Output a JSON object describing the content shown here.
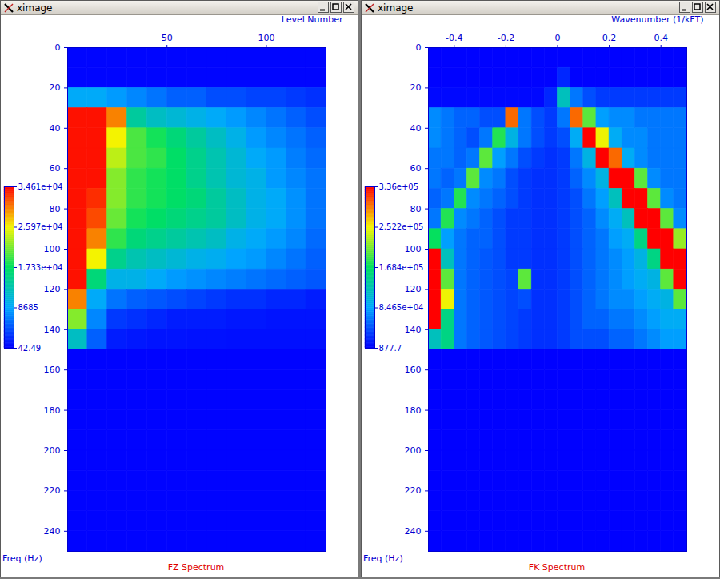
{
  "chart_data": [
    {
      "type": "heatmap",
      "window_title": "ximage",
      "title": "FZ Spectrum",
      "x_label": "Level Number",
      "y_label": "Freq (Hz)",
      "xlim": [
        0,
        130
      ],
      "xticks": [
        50,
        100
      ],
      "ylim": [
        0,
        250
      ],
      "yticks": [
        0,
        20,
        40,
        60,
        80,
        100,
        120,
        140,
        160,
        180,
        200,
        220,
        240
      ],
      "x_bins": [
        0,
        10,
        20,
        30,
        40,
        50,
        60,
        70,
        80,
        90,
        100,
        110,
        120,
        130
      ],
      "y_bins": [
        0,
        10,
        20,
        30,
        40,
        50,
        60,
        70,
        80,
        90,
        100,
        110,
        120,
        130,
        140,
        150,
        160,
        170,
        180,
        190,
        200,
        210,
        220,
        230,
        240,
        250
      ],
      "cells": [
        [
          300,
          300,
          300,
          300,
          300,
          300,
          300,
          300,
          300,
          300,
          300,
          300,
          300
        ],
        [
          300,
          300,
          300,
          300,
          300,
          300,
          300,
          300,
          300,
          300,
          300,
          300,
          300
        ],
        [
          9000,
          9000,
          8000,
          7000,
          6000,
          5000,
          5000,
          4000,
          4000,
          3500,
          3500,
          3000,
          2500
        ],
        [
          34000,
          34000,
          30000,
          14000,
          12000,
          11000,
          10000,
          9000,
          8000,
          7000,
          6000,
          5000,
          4000
        ],
        [
          34000,
          34000,
          26000,
          20000,
          18000,
          16000,
          14000,
          12000,
          10000,
          8000,
          7000,
          6000,
          5000
        ],
        [
          34000,
          34000,
          24000,
          20000,
          19000,
          17000,
          15000,
          13000,
          11000,
          9000,
          8000,
          6500,
          5500
        ],
        [
          34000,
          34000,
          22000,
          19000,
          18000,
          17000,
          15000,
          13000,
          11000,
          10000,
          8000,
          7000,
          6000
        ],
        [
          34000,
          33000,
          22000,
          19000,
          18000,
          17000,
          16000,
          14000,
          12000,
          10000,
          9000,
          7500,
          6000
        ],
        [
          34000,
          32000,
          21000,
          18000,
          17000,
          16000,
          15000,
          14000,
          12000,
          10000,
          9000,
          7500,
          6000
        ],
        [
          34000,
          30000,
          19000,
          16000,
          15000,
          14000,
          13000,
          12000,
          10000,
          9000,
          8000,
          7000,
          5500
        ],
        [
          34000,
          26000,
          15000,
          13000,
          12000,
          11000,
          10000,
          9500,
          8500,
          8000,
          7000,
          6000,
          5000
        ],
        [
          34000,
          16000,
          10000,
          10000,
          9000,
          8000,
          7500,
          7000,
          6500,
          6000,
          5500,
          5000,
          4500
        ],
        [
          30000,
          9000,
          6000,
          5000,
          4500,
          4000,
          3500,
          3000,
          2500,
          2500,
          2000,
          2000,
          1500
        ],
        [
          22000,
          7000,
          3000,
          2500,
          2000,
          1500,
          1500,
          1500,
          1200,
          1200,
          1000,
          1000,
          1000
        ],
        [
          12000,
          5000,
          1500,
          1200,
          1000,
          1000,
          900,
          900,
          800,
          800,
          800,
          800,
          800
        ],
        [
          200,
          200,
          200,
          200,
          200,
          200,
          200,
          200,
          200,
          200,
          200,
          200,
          200
        ],
        [
          200,
          200,
          200,
          200,
          200,
          200,
          200,
          200,
          200,
          200,
          200,
          200,
          200
        ],
        [
          200,
          200,
          200,
          200,
          200,
          200,
          200,
          200,
          200,
          200,
          200,
          200,
          200
        ],
        [
          200,
          200,
          200,
          200,
          200,
          200,
          200,
          200,
          200,
          200,
          200,
          200,
          200
        ],
        [
          200,
          200,
          200,
          200,
          200,
          200,
          200,
          200,
          200,
          200,
          200,
          200,
          200
        ],
        [
          200,
          200,
          200,
          200,
          200,
          200,
          200,
          200,
          200,
          200,
          200,
          200,
          200
        ],
        [
          200,
          200,
          200,
          200,
          200,
          200,
          200,
          200,
          200,
          200,
          200,
          200,
          200
        ],
        [
          200,
          200,
          200,
          200,
          200,
          200,
          200,
          200,
          200,
          200,
          200,
          200,
          200
        ],
        [
          200,
          200,
          200,
          200,
          200,
          200,
          200,
          200,
          200,
          200,
          200,
          200,
          200
        ],
        [
          200,
          200,
          200,
          200,
          200,
          200,
          200,
          200,
          200,
          200,
          200,
          200,
          200
        ]
      ],
      "colorbar": {
        "range": [
          42.49,
          34610
        ],
        "ticks": [
          {
            "value": 34610,
            "label": "3.461e+04"
          },
          {
            "value": 25970,
            "label": "2.597e+04"
          },
          {
            "value": 17330,
            "label": "1.733e+04"
          },
          8685,
          42.49
        ]
      }
    },
    {
      "type": "heatmap",
      "window_title": "ximage",
      "title": "FK Spectrum",
      "x_label": "Wavenumber (1/kFT)",
      "y_label": "Freq (Hz)",
      "xlim": [
        -0.5,
        0.5
      ],
      "xticks": [
        -0.4,
        -0.2,
        0,
        0.2,
        0.4
      ],
      "ylim": [
        0,
        250
      ],
      "yticks": [
        0,
        20,
        40,
        60,
        80,
        100,
        120,
        140,
        160,
        180,
        200,
        220,
        240
      ],
      "x_bins": [
        -0.5,
        -0.45,
        -0.4,
        -0.35,
        -0.3,
        -0.25,
        -0.2,
        -0.15,
        -0.1,
        -0.05,
        0,
        0.05,
        0.1,
        0.15,
        0.2,
        0.25,
        0.3,
        0.35,
        0.4,
        0.45,
        0.5
      ],
      "y_bins": [
        0,
        10,
        20,
        30,
        40,
        50,
        60,
        70,
        80,
        90,
        100,
        110,
        120,
        130,
        140,
        150,
        160,
        170,
        180,
        190,
        200,
        210,
        220,
        230,
        240,
        250
      ],
      "cells": [
        [
          2000,
          2000,
          2000,
          2000,
          2000,
          2000,
          2000,
          2000,
          2000,
          2000,
          2000,
          2000,
          2000,
          2000,
          2000,
          2000,
          2000,
          2000,
          2000,
          2000
        ],
        [
          2000,
          2000,
          2000,
          2000,
          2000,
          2000,
          2000,
          2000,
          2000,
          2000,
          20000,
          2000,
          2000,
          2000,
          2000,
          2000,
          2000,
          2000,
          2000,
          2000
        ],
        [
          5000,
          5000,
          5000,
          5000,
          5000,
          5000,
          5000,
          5000,
          5000,
          20000,
          120000,
          60000,
          40000,
          30000,
          30000,
          30000,
          30000,
          30000,
          30000,
          30000
        ],
        [
          70000,
          60000,
          50000,
          50000,
          40000,
          40000,
          300000,
          60000,
          40000,
          30000,
          60000,
          300000,
          200000,
          80000,
          70000,
          70000,
          60000,
          60000,
          60000,
          60000
        ],
        [
          70000,
          60000,
          50000,
          40000,
          60000,
          180000,
          100000,
          60000,
          40000,
          30000,
          40000,
          90000,
          336000,
          250000,
          90000,
          70000,
          70000,
          60000,
          60000,
          60000
        ],
        [
          60000,
          60000,
          50000,
          60000,
          200000,
          80000,
          60000,
          40000,
          30000,
          25000,
          30000,
          60000,
          100000,
          336000,
          300000,
          90000,
          70000,
          60000,
          60000,
          60000
        ],
        [
          60000,
          50000,
          60000,
          200000,
          70000,
          60000,
          40000,
          30000,
          25000,
          25000,
          30000,
          50000,
          70000,
          100000,
          336000,
          336000,
          200000,
          70000,
          60000,
          60000
        ],
        [
          50000,
          60000,
          180000,
          70000,
          60000,
          50000,
          40000,
          30000,
          25000,
          25000,
          30000,
          40000,
          60000,
          80000,
          120000,
          336000,
          336000,
          200000,
          70000,
          60000
        ],
        [
          60000,
          180000,
          70000,
          60000,
          50000,
          40000,
          30000,
          30000,
          25000,
          25000,
          30000,
          40000,
          50000,
          70000,
          90000,
          120000,
          336000,
          336000,
          200000,
          70000
        ],
        [
          170000,
          80000,
          60000,
          50000,
          50000,
          40000,
          30000,
          30000,
          25000,
          25000,
          30000,
          40000,
          50000,
          60000,
          80000,
          90000,
          150000,
          336000,
          336000,
          220000
        ],
        [
          336000,
          120000,
          60000,
          50000,
          45000,
          40000,
          30000,
          30000,
          25000,
          25000,
          30000,
          40000,
          50000,
          60000,
          70000,
          80000,
          100000,
          150000,
          336000,
          336000
        ],
        [
          336000,
          200000,
          60000,
          50000,
          45000,
          40000,
          35000,
          200000,
          25000,
          25000,
          30000,
          40000,
          50000,
          60000,
          70000,
          80000,
          90000,
          100000,
          200000,
          336000
        ],
        [
          336000,
          250000,
          60000,
          50000,
          45000,
          40000,
          35000,
          40000,
          25000,
          25000,
          30000,
          40000,
          50000,
          60000,
          70000,
          70000,
          80000,
          90000,
          100000,
          200000
        ],
        [
          336000,
          150000,
          60000,
          50000,
          45000,
          40000,
          35000,
          30000,
          25000,
          25000,
          30000,
          40000,
          50000,
          50000,
          60000,
          60000,
          70000,
          80000,
          90000,
          90000
        ],
        [
          120000,
          150000,
          60000,
          50000,
          45000,
          40000,
          35000,
          30000,
          25000,
          25000,
          30000,
          40000,
          40000,
          40000,
          50000,
          50000,
          60000,
          70000,
          80000,
          80000
        ],
        [
          1500,
          1500,
          1500,
          1500,
          1500,
          1500,
          1500,
          1500,
          1500,
          1500,
          1500,
          1500,
          1500,
          1500,
          1500,
          1500,
          1500,
          1500,
          1500,
          1500
        ],
        [
          1500,
          1500,
          1500,
          1500,
          1500,
          1500,
          1500,
          1500,
          1500,
          1500,
          1500,
          1500,
          1500,
          1500,
          1500,
          1500,
          1500,
          1500,
          1500,
          1500
        ],
        [
          1500,
          1500,
          1500,
          1500,
          1500,
          1500,
          1500,
          1500,
          1500,
          1500,
          1500,
          1500,
          1500,
          1500,
          1500,
          1500,
          1500,
          1500,
          1500,
          1500
        ],
        [
          1500,
          1500,
          1500,
          1500,
          1500,
          1500,
          1500,
          1500,
          1500,
          1500,
          1500,
          1500,
          1500,
          1500,
          1500,
          1500,
          1500,
          1500,
          1500,
          1500
        ],
        [
          1500,
          1500,
          1500,
          1500,
          1500,
          1500,
          1500,
          1500,
          1500,
          1500,
          1500,
          1500,
          1500,
          1500,
          1500,
          1500,
          1500,
          1500,
          1500,
          1500
        ],
        [
          1500,
          1500,
          1500,
          1500,
          1500,
          1500,
          1500,
          1500,
          1500,
          1500,
          1500,
          1500,
          1500,
          1500,
          1500,
          1500,
          1500,
          1500,
          1500,
          1500
        ],
        [
          1500,
          1500,
          1500,
          1500,
          1500,
          1500,
          1500,
          1500,
          1500,
          1500,
          1500,
          1500,
          1500,
          1500,
          1500,
          1500,
          1500,
          1500,
          1500,
          1500
        ],
        [
          1500,
          1500,
          1500,
          1500,
          1500,
          1500,
          1500,
          1500,
          1500,
          1500,
          1500,
          1500,
          1500,
          1500,
          1500,
          1500,
          1500,
          1500,
          1500,
          1500
        ],
        [
          1500,
          1500,
          1500,
          1500,
          1500,
          1500,
          1500,
          1500,
          1500,
          1500,
          1500,
          1500,
          1500,
          1500,
          1500,
          1500,
          1500,
          1500,
          1500,
          1500
        ],
        [
          1500,
          1500,
          1500,
          1500,
          1500,
          1500,
          1500,
          1500,
          1500,
          1500,
          1500,
          1500,
          1500,
          1500,
          1500,
          1500,
          1500,
          1500,
          1500,
          1500
        ]
      ],
      "colorbar": {
        "range": [
          877.7,
          336000
        ],
        "ticks": [
          {
            "value": 336000,
            "label": "3.36e+05"
          },
          {
            "value": 252200,
            "label": "2.522e+05"
          },
          {
            "value": 168400,
            "label": "1.684e+05"
          },
          {
            "value": 84650,
            "label": "8.465e+04"
          },
          877.7
        ]
      }
    }
  ]
}
